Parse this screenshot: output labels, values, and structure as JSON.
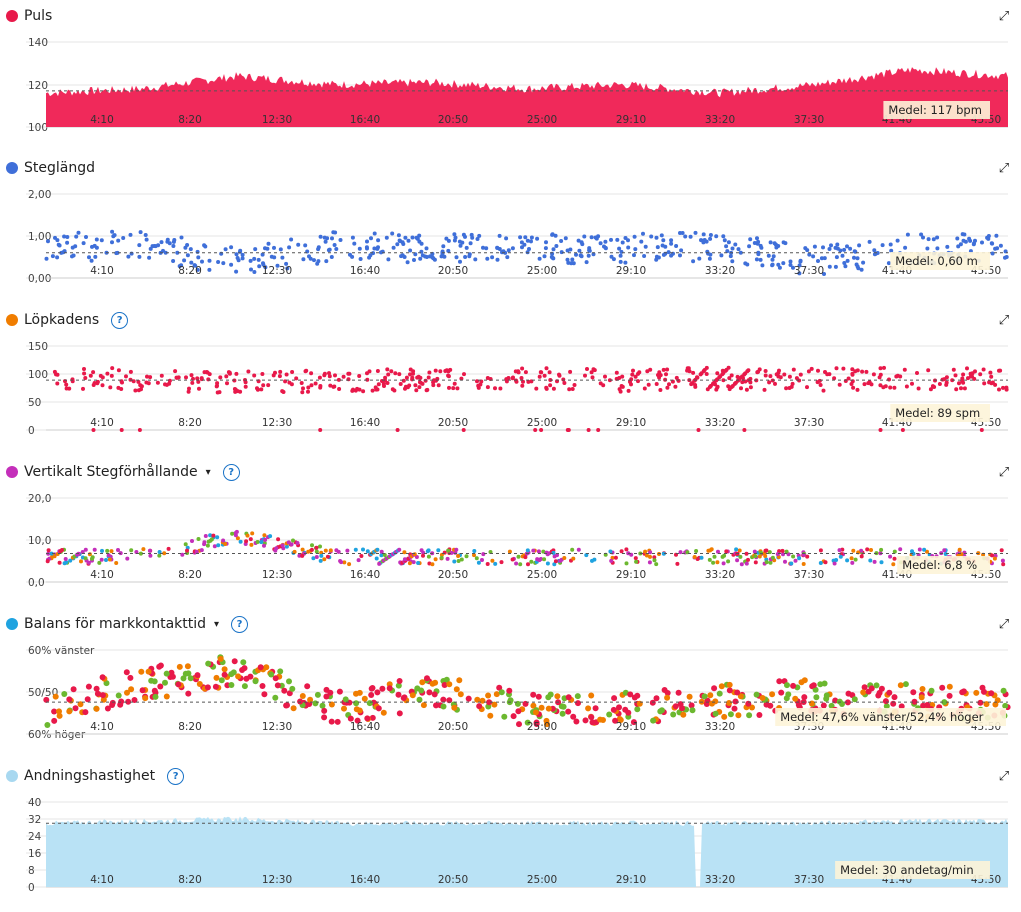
{
  "x_ticks": [
    "4:10",
    "8:20",
    "12:30",
    "16:40",
    "20:50",
    "25:00",
    "29:10",
    "33:20",
    "37:30",
    "41:40",
    "45:50"
  ],
  "panels": [
    {
      "id": "puls",
      "title": "Puls",
      "dot_color": "#e8194a",
      "help": false,
      "caret": false,
      "y_ticks": [
        "140",
        "120",
        "100"
      ],
      "medel": "Medel: 117 bpm"
    },
    {
      "id": "steg",
      "title": "Steglängd",
      "dot_color": "#3f6fd9",
      "help": false,
      "caret": false,
      "y_ticks": [
        "2,00",
        "1,00",
        "0,00"
      ],
      "medel": "Medel: 0,60 m"
    },
    {
      "id": "kadens",
      "title": "Löpkadens",
      "dot_color": "#f07d00",
      "help": true,
      "caret": false,
      "y_ticks": [
        "150",
        "100",
        "50",
        "0"
      ],
      "medel": "Medel: 89 spm"
    },
    {
      "id": "vert",
      "title": "Vertikalt Stegförhållande",
      "dot_color": "#c42fba",
      "help": true,
      "caret": true,
      "y_ticks": [
        "20,0",
        "10,0",
        "0,0"
      ],
      "medel": "Medel: 6,8 %"
    },
    {
      "id": "balans",
      "title": "Balans för markkontakttid",
      "dot_color": "#1fa3e0",
      "help": true,
      "caret": true,
      "y_ticks": [
        "60% vänster",
        "50/50",
        "60% höger"
      ],
      "medel": "Medel: 47,6% vänster/52,4% höger"
    },
    {
      "id": "andning",
      "title": "Andningshastighet",
      "dot_color": "#a8d8f0",
      "help": true,
      "caret": false,
      "y_ticks": [
        "40",
        "32",
        "24",
        "16",
        "8",
        "0"
      ],
      "medel": "Medel: 30 andetag/min"
    }
  ],
  "help_glyph": "?",
  "caret_glyph": "▾",
  "expand_glyph": "⤢",
  "chart_data": [
    {
      "type": "area",
      "title": "Puls",
      "ylim": [
        100,
        140
      ],
      "mean": 117,
      "color": "#f0295a",
      "x": [
        "4:10",
        "8:20",
        "12:30",
        "16:40",
        "20:50",
        "25:00",
        "29:10",
        "33:20",
        "37:30",
        "41:40",
        "45:50"
      ],
      "values": [
        116,
        118,
        124,
        120,
        121,
        118,
        120,
        116,
        120,
        127,
        124
      ]
    },
    {
      "type": "scatter",
      "title": "Steglängd",
      "ylim": [
        0,
        2
      ],
      "mean": 0.6,
      "color": "#3f6fd9",
      "x": [
        "4:10",
        "8:20",
        "12:30",
        "16:40",
        "20:50",
        "25:00",
        "29:10",
        "33:20",
        "37:30",
        "41:40",
        "45:50"
      ],
      "values": [
        0.7,
        0.8,
        0.35,
        0.75,
        0.7,
        0.7,
        0.7,
        0.75,
        0.4,
        0.7,
        0.7
      ]
    },
    {
      "type": "scatter",
      "title": "Löpkadens",
      "ylim": [
        0,
        150
      ],
      "mean": 89,
      "color": "#e8194a",
      "x": [
        "4:10",
        "8:20",
        "12:30",
        "16:40",
        "20:50",
        "25:00",
        "29:10",
        "33:20",
        "37:30",
        "41:40",
        "45:50"
      ],
      "values": [
        95,
        90,
        85,
        88,
        90,
        92,
        88,
        92,
        90,
        92,
        90
      ]
    },
    {
      "type": "scatter",
      "title": "Vertikalt Stegförhållande",
      "ylim": [
        0,
        20
      ],
      "mean": 6.8,
      "x": [
        "4:10",
        "8:20",
        "12:30",
        "16:40",
        "20:50",
        "25:00",
        "29:10",
        "33:20",
        "37:30",
        "41:40",
        "45:50"
      ],
      "values": [
        6,
        6,
        11,
        6,
        6,
        6,
        6,
        6,
        6,
        6,
        6
      ]
    },
    {
      "type": "scatter",
      "title": "Balans för markkontakttid",
      "ylim": [
        40,
        60
      ],
      "mean": 47.6,
      "x": [
        "4:10",
        "8:20",
        "12:30",
        "16:40",
        "20:50",
        "25:00",
        "29:10",
        "33:20",
        "37:30",
        "41:40",
        "45:50"
      ],
      "values": [
        46,
        52,
        55,
        46,
        50,
        46,
        46,
        48,
        49,
        48,
        47
      ]
    },
    {
      "type": "area",
      "title": "Andningshastighet",
      "ylim": [
        0,
        40
      ],
      "mean": 30,
      "color": "#b9e2f5",
      "x": [
        "4:10",
        "8:20",
        "12:30",
        "16:40",
        "20:50",
        "25:00",
        "29:10",
        "33:20",
        "37:30",
        "41:40",
        "45:50"
      ],
      "values": [
        30,
        31,
        32,
        30,
        30,
        30,
        30,
        30,
        30,
        31,
        31
      ]
    }
  ]
}
